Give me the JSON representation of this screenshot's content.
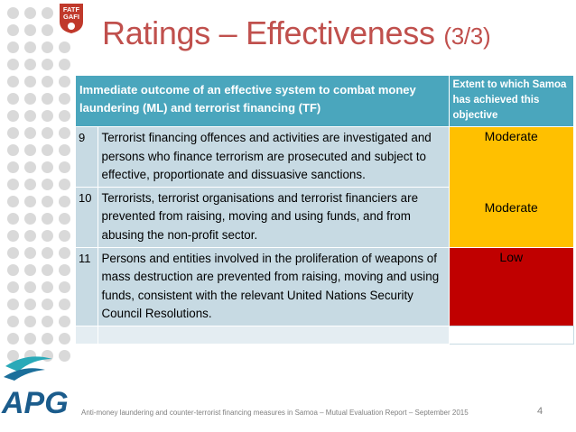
{
  "slide": {
    "title": "Ratings – Effectiveness",
    "title_part": "(3/3)",
    "page_number": "4",
    "footer": "Anti-money laundering and counter-terrorist financing measures in Samoa – Mutual Evaluation Report – September 2015"
  },
  "logos": {
    "fatf_text": "FATF GAFI",
    "apg_text": "APG"
  },
  "table": {
    "header_outcome": "Immediate outcome of an effective system to combat money laundering (ML) and terrorist financing (TF)",
    "header_extent": "Extent to which Samoa has achieved this objective",
    "rows": [
      {
        "number": "9",
        "description": "Terrorist financing offences and activities are investigated and persons who finance terrorism are prosecuted and subject to effective, proportionate and dissuasive sanctions.",
        "rating": "Moderate",
        "rating_color": "#ffc000"
      },
      {
        "number": "10",
        "description": "Terrorists, terrorist organisations and terrorist financiers are prevented from raising, moving and using funds, and from abusing the non-profit sector.",
        "rating": "Moderate",
        "rating_color": "#ffc000"
      },
      {
        "number": "11",
        "description": "Persons and entities involved in the proliferation of weapons of mass destruction are prevented from raising, moving and using funds, consistent with the relevant United Nations Security Council Resolutions.",
        "rating": "Low",
        "rating_color": "#c00000"
      }
    ]
  },
  "colors": {
    "title": "#c0504d",
    "header_bg": "#4aa6bd",
    "row_bg": "#c7dae3",
    "moderate": "#ffc000",
    "low": "#c00000"
  }
}
